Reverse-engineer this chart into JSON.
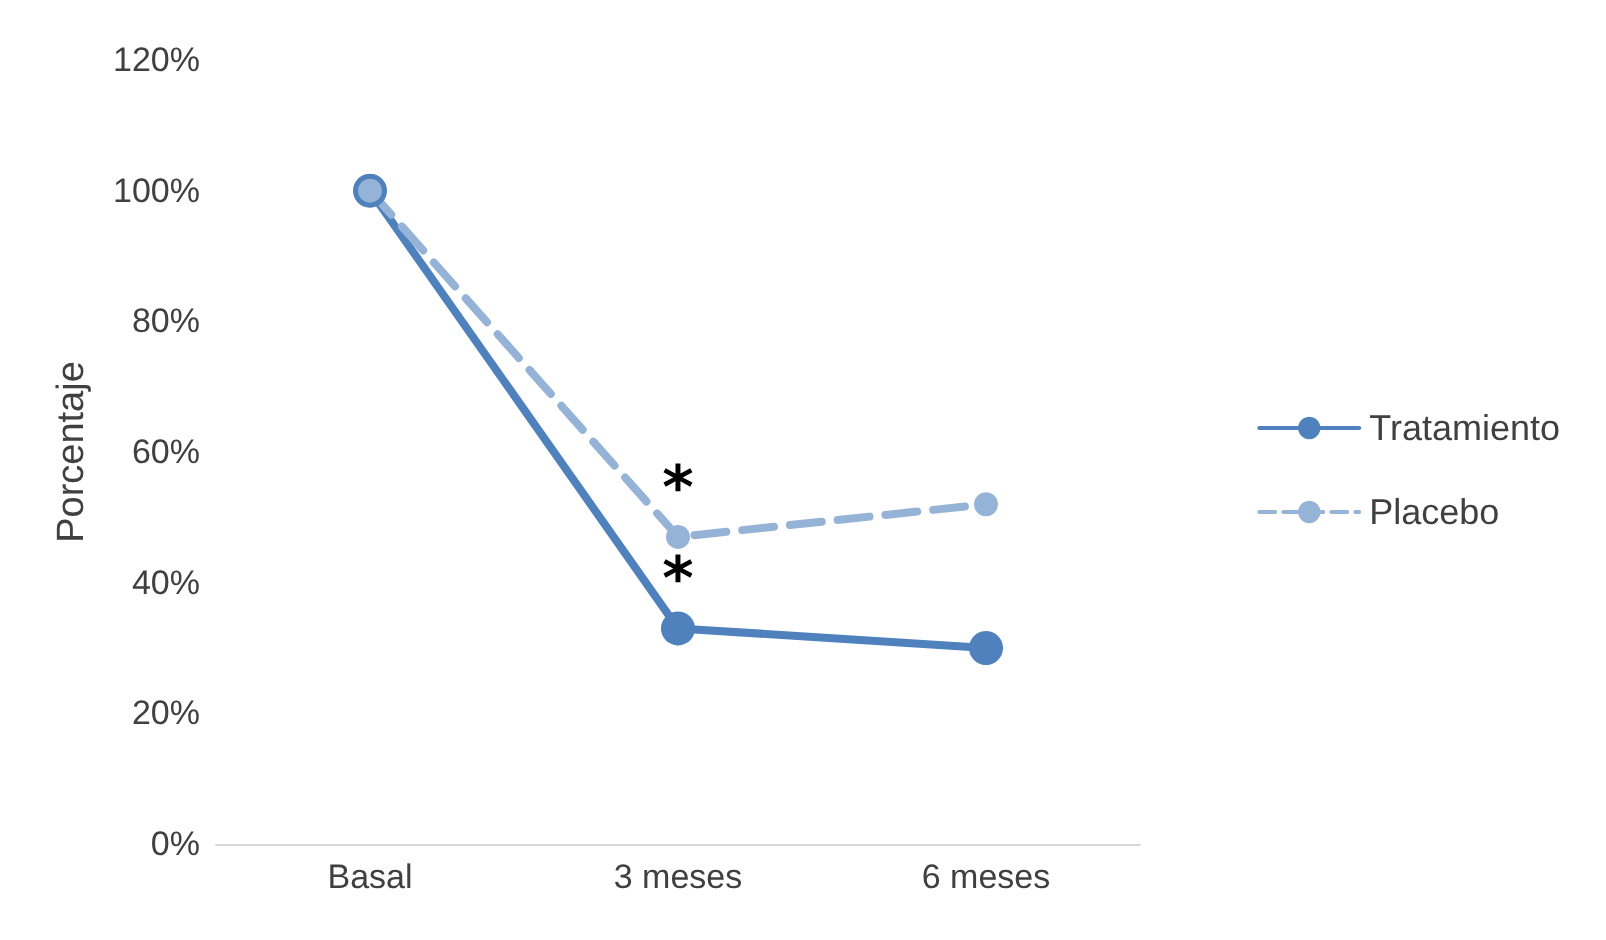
{
  "chart_data": {
    "type": "line",
    "ylabel": "Porcentaje",
    "categories": [
      "Basal",
      "3 meses",
      "6 meses"
    ],
    "series": [
      {
        "name": "Tratamiento",
        "color": "#4f81bd",
        "values": [
          100,
          33,
          30
        ],
        "line_style": "solid"
      },
      {
        "name": "Placebo",
        "color": "#95b3d7",
        "values": [
          100,
          47,
          52
        ],
        "line_style": "dashed"
      }
    ],
    "ylim": [
      0,
      120
    ],
    "yticks": [
      {
        "value": 0,
        "label": "0%"
      },
      {
        "value": 20,
        "label": "20%"
      },
      {
        "value": 40,
        "label": "40%"
      },
      {
        "value": 60,
        "label": "60%"
      },
      {
        "value": 80,
        "label": "80%"
      },
      {
        "value": 100,
        "label": "100%"
      },
      {
        "value": 120,
        "label": "120%"
      }
    ],
    "annotations": [
      {
        "text": "*",
        "x": "3 meses",
        "y": 47
      },
      {
        "text": "*",
        "x": "3 meses",
        "y": 33
      }
    ],
    "grid": false,
    "legend": "right",
    "marker": "circle"
  }
}
